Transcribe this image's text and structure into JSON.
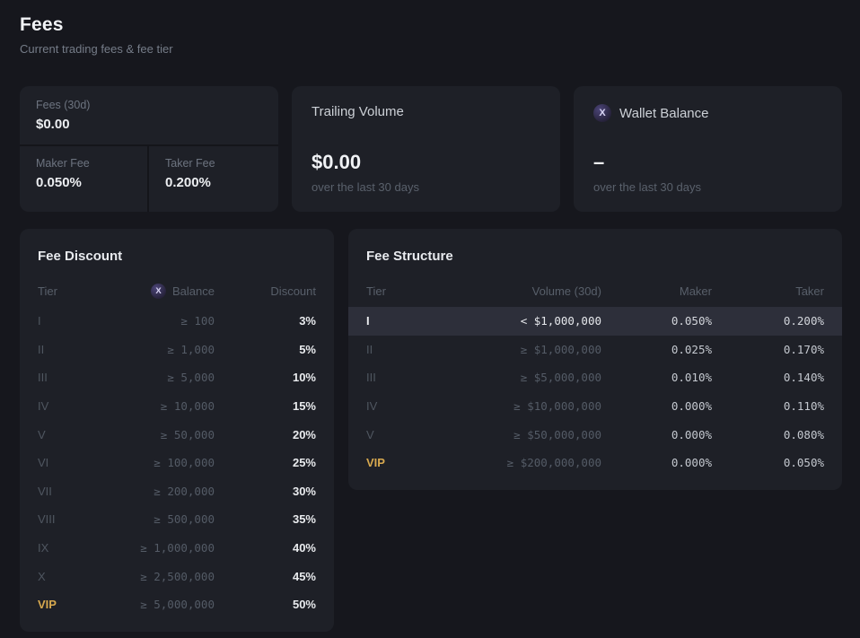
{
  "page": {
    "title": "Fees",
    "subtitle": "Current trading fees & fee tier"
  },
  "colors": {
    "page_bg": "#16171d",
    "card_bg": "#1e2027",
    "highlight_row_bg": "#2d2f3a",
    "vip_gold": "#d8a94f",
    "token_icon_bg": "#2c2844",
    "primary_text": "#eceef1",
    "muted_text": "#545b66"
  },
  "icons": {
    "token_glyph": "X"
  },
  "top_cards": {
    "fees": {
      "label": "Fees (30d)",
      "value": "$0.00",
      "maker_label": "Maker Fee",
      "maker_value": "0.050%",
      "taker_label": "Taker Fee",
      "taker_value": "0.200%"
    },
    "trailing_volume": {
      "label": "Trailing Volume",
      "value": "$0.00",
      "caption": "over the last 30 days"
    },
    "wallet_balance": {
      "label": "Wallet Balance",
      "icon": "x-token-icon",
      "value": "–",
      "caption": "over the last 30 days"
    }
  },
  "fee_discount": {
    "title": "Fee Discount",
    "headers": {
      "tier": "Tier",
      "balance": "Balance",
      "discount": "Discount"
    },
    "balance_header_icon": "x-token-icon",
    "rows": [
      {
        "tier": "I",
        "balance": "≥ 100",
        "discount": "3%",
        "vip": false
      },
      {
        "tier": "II",
        "balance": "≥ 1,000",
        "discount": "5%",
        "vip": false
      },
      {
        "tier": "III",
        "balance": "≥ 5,000",
        "discount": "10%",
        "vip": false
      },
      {
        "tier": "IV",
        "balance": "≥ 10,000",
        "discount": "15%",
        "vip": false
      },
      {
        "tier": "V",
        "balance": "≥ 50,000",
        "discount": "20%",
        "vip": false
      },
      {
        "tier": "VI",
        "balance": "≥ 100,000",
        "discount": "25%",
        "vip": false
      },
      {
        "tier": "VII",
        "balance": "≥ 200,000",
        "discount": "30%",
        "vip": false
      },
      {
        "tier": "VIII",
        "balance": "≥ 500,000",
        "discount": "35%",
        "vip": false
      },
      {
        "tier": "IX",
        "balance": "≥ 1,000,000",
        "discount": "40%",
        "vip": false
      },
      {
        "tier": "X",
        "balance": "≥ 2,500,000",
        "discount": "45%",
        "vip": false
      },
      {
        "tier": "VIP",
        "balance": "≥ 5,000,000",
        "discount": "50%",
        "vip": true
      }
    ]
  },
  "fee_structure": {
    "title": "Fee Structure",
    "headers": {
      "tier": "Tier",
      "volume": "Volume (30d)",
      "maker": "Maker",
      "taker": "Taker"
    },
    "rows": [
      {
        "tier": "I",
        "volume": "< $1,000,000",
        "maker": "0.050%",
        "taker": "0.200%",
        "highlighted": true,
        "vip": false
      },
      {
        "tier": "II",
        "volume": "≥ $1,000,000",
        "maker": "0.025%",
        "taker": "0.170%",
        "highlighted": false,
        "vip": false
      },
      {
        "tier": "III",
        "volume": "≥ $5,000,000",
        "maker": "0.010%",
        "taker": "0.140%",
        "highlighted": false,
        "vip": false
      },
      {
        "tier": "IV",
        "volume": "≥ $10,000,000",
        "maker": "0.000%",
        "taker": "0.110%",
        "highlighted": false,
        "vip": false
      },
      {
        "tier": "V",
        "volume": "≥ $50,000,000",
        "maker": "0.000%",
        "taker": "0.080%",
        "highlighted": false,
        "vip": false
      },
      {
        "tier": "VIP",
        "volume": "≥ $200,000,000",
        "maker": "0.000%",
        "taker": "0.050%",
        "highlighted": false,
        "vip": true
      }
    ]
  }
}
